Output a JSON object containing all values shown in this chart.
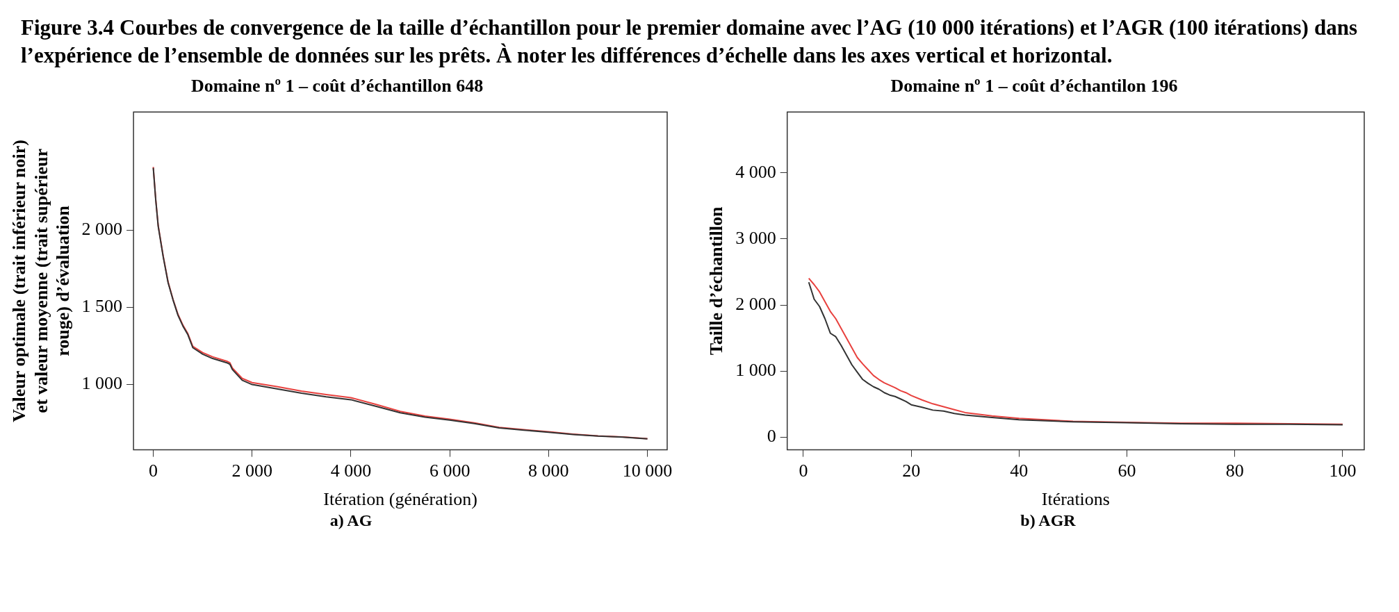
{
  "chart_data": [
    {
      "type": "line",
      "title": "Domaine nº 1 – coût d’échantillon 648",
      "xlabel": "Itération (génération)",
      "ylabel": "Valeur optimale (trait inférieur noir) et valeur moyenne (trait supérieur rouge) d’évaluation",
      "annotations": [
        "Figure 3.4 Courbes de convergence de la taille d’échantillon pour le premier domaine avec l’AG (10 000 itérations) et l’AGR (100 itérations) dans l’expérience de l’ensemble de données sur les prêts. À noter les différences d’échelle dans les axes vertical et horizontal.",
        "a) AG"
      ],
      "x": [
        0,
        50,
        100,
        200,
        300,
        400,
        500,
        600,
        700,
        800,
        1000,
        1200,
        1500,
        1550,
        1600,
        1800,
        2000,
        2500,
        3000,
        3500,
        4000,
        4500,
        5000,
        5500,
        6000,
        6500,
        7000,
        7500,
        8000,
        8500,
        9000,
        9500,
        10000
      ],
      "series": [
        {
          "color": "#333333",
          "values": [
            2404,
            2194,
            2025,
            1829,
            1660,
            1548,
            1449,
            1379,
            1323,
            1239,
            1197,
            1169,
            1140,
            1132,
            1098,
            1028,
            1000,
            972,
            944,
            921,
            902,
            860,
            817,
            789,
            770,
            747,
            719,
            705,
            691,
            677,
            666,
            660,
            648
          ]
        },
        {
          "color": "#e8413e",
          "values": [
            2410,
            2200,
            2030,
            1835,
            1665,
            1552,
            1455,
            1385,
            1330,
            1248,
            1207,
            1180,
            1150,
            1142,
            1108,
            1040,
            1013,
            987,
            958,
            935,
            915,
            872,
            826,
            796,
            776,
            752,
            723,
            708,
            694,
            679,
            667,
            661,
            650
          ]
        }
      ],
      "xlim": [
        -400,
        10400
      ],
      "xticks": [
        {
          "value": 0,
          "label": "0"
        },
        {
          "value": 2000,
          "label": "2 000"
        },
        {
          "value": 4000,
          "label": "4 000"
        },
        {
          "value": 6000,
          "label": "6 000"
        },
        {
          "value": 8000,
          "label": "8 000"
        },
        {
          "value": 10000,
          "label": "10 000"
        }
      ],
      "ylim": [
        577,
        2766
      ],
      "yticks": [
        {
          "value": 1000,
          "label": "1 000"
        },
        {
          "value": 1500,
          "label": "1 500"
        },
        {
          "value": 2000,
          "label": "2 000"
        }
      ],
      "grid": false,
      "legend": false,
      "marker": "none",
      "line_style": "solid"
    },
    {
      "type": "line",
      "title": "Domaine nº 1 – coût d’échantilon 196",
      "xlabel": "Itérations",
      "ylabel": "Taille d’échantillon",
      "annotations": [
        "b) AGR"
      ],
      "x": [
        1,
        2,
        3,
        4,
        5,
        6,
        7,
        8,
        9,
        10,
        11,
        12,
        13,
        14,
        15,
        16,
        17,
        18,
        19,
        20,
        22,
        24,
        26,
        28,
        30,
        35,
        40,
        50,
        60,
        70,
        80,
        90,
        100
      ],
      "series": [
        {
          "color": "#333333",
          "values": [
            2346,
            2088,
            1978,
            1794,
            1574,
            1522,
            1390,
            1243,
            1096,
            985,
            875,
            816,
            765,
            728,
            676,
            640,
            618,
            581,
            544,
            493,
            456,
            412,
            397,
            360,
            338,
            301,
            265,
            235,
            221,
            206,
            199,
            199,
            191
          ]
        },
        {
          "color": "#e8413e",
          "values": [
            2404,
            2309,
            2199,
            2051,
            1904,
            1794,
            1647,
            1500,
            1353,
            1206,
            1110,
            1022,
            934,
            875,
            824,
            787,
            750,
            706,
            676,
            632,
            566,
            507,
            463,
            419,
            375,
            324,
            287,
            243,
            228,
            213,
            213,
            206,
            199
          ]
        }
      ],
      "xlim": [
        -3,
        104
      ],
      "xticks": [
        0,
        20,
        40,
        60,
        80,
        100
      ],
      "ylim": [
        -189,
        4919
      ],
      "yticks": [
        0,
        {
          "value": 1000,
          "label": "1 000"
        },
        {
          "value": 2000,
          "label": "2 000"
        },
        {
          "value": 3000,
          "label": "3 000"
        },
        {
          "value": 4000,
          "label": "4 000"
        }
      ],
      "grid": false,
      "legend": false,
      "marker": "none",
      "line_style": "solid"
    }
  ]
}
